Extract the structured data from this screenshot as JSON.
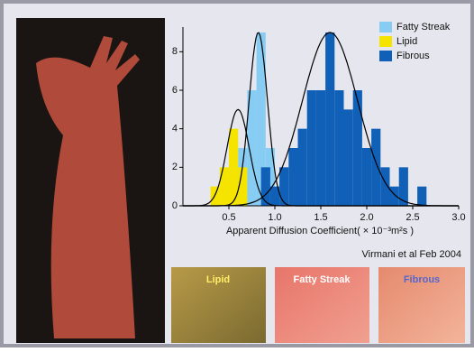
{
  "chart_data": {
    "type": "histogram",
    "xlabel": "Apparent Diffusion Coefficient( × 10⁻³m²s )",
    "annotation": "Virmani et al Feb 2004",
    "xlim": [
      0,
      3.0
    ],
    "xticks": [
      0.5,
      {
        "value": 1,
        "label": "1.0"
      },
      1.5,
      {
        "value": 2,
        "label": "2.0"
      },
      2.5,
      {
        "value": 3,
        "label": "3.0"
      }
    ],
    "ylim": [
      0,
      9
    ],
    "yticks": [
      0,
      2,
      4,
      6,
      8
    ],
    "series": [
      {
        "name": "Fatty Streak",
        "color": "#87cdf3",
        "bins": [
          0.6,
          0.7,
          0.8,
          0.9,
          1.0
        ],
        "values": [
          3,
          6,
          9,
          3
        ],
        "fit": {
          "mean": 0.82,
          "sd": 0.1,
          "peak": 9
        }
      },
      {
        "name": "Lipid",
        "color": "#f5e400",
        "bins": [
          0.3,
          0.4,
          0.5,
          0.6,
          0.7
        ],
        "values": [
          1,
          2,
          4,
          2
        ],
        "fit": {
          "mean": 0.6,
          "sd": 0.12,
          "peak": 5
        }
      },
      {
        "name": "Fibrous",
        "color": "#1060b8",
        "bins": [
          0.85,
          0.95,
          1.05,
          1.15,
          1.25,
          1.35,
          1.45,
          1.55,
          1.65,
          1.75,
          1.85,
          1.95,
          2.05,
          2.15,
          2.25,
          2.35,
          2.45,
          2.55,
          2.65
        ],
        "values": [
          2,
          1,
          2,
          3,
          4,
          6,
          6,
          9,
          6,
          5,
          6,
          3,
          4,
          2,
          1,
          2,
          0,
          1
        ],
        "fit": {
          "mean": 1.6,
          "sd": 0.3,
          "peak": 9
        }
      }
    ]
  },
  "thumbnails": [
    "Lipid",
    "Fatty Streak",
    "Fibrous"
  ]
}
